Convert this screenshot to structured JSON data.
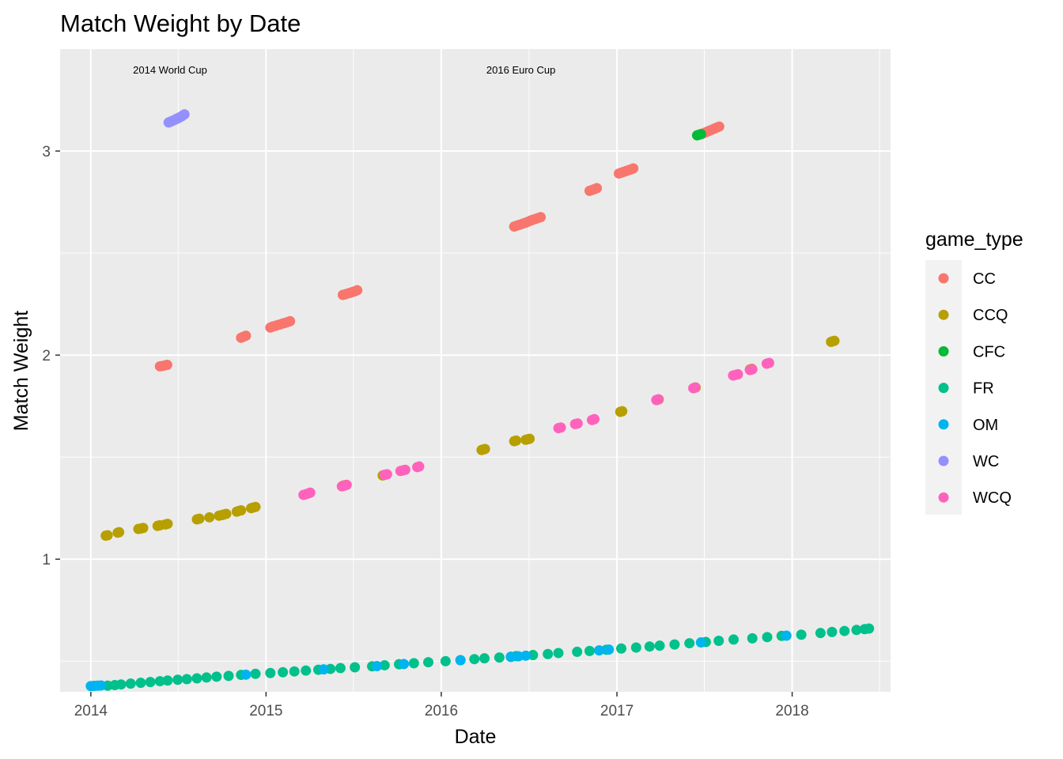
{
  "chart_data": {
    "type": "scatter",
    "title": "Match Weight by Date",
    "xlabel": "Date",
    "ylabel": "Match Weight",
    "x_ticks": [
      "2014",
      "2015",
      "2016",
      "2017",
      "2018"
    ],
    "y_ticks": [
      "1",
      "2",
      "3"
    ],
    "xlim": [
      "2013-10-29",
      "2018-07-25"
    ],
    "ylim": [
      0.35,
      3.5
    ],
    "grid": true,
    "legend_title": "game_type",
    "legend_position": "right",
    "annotations": [
      {
        "text": "2014 World Cup",
        "x": "2014-06-15",
        "y": 3.4
      },
      {
        "text": "2016 Euro Cup",
        "x": "2016-06-15",
        "y": 3.4
      }
    ],
    "series": [
      {
        "name": "CC",
        "color": "#F8766D",
        "points": [
          [
            "2014-05-25",
            1.945
          ],
          [
            "2014-05-30",
            1.947
          ],
          [
            "2014-06-04",
            1.949
          ],
          [
            "2014-06-09",
            1.952
          ],
          [
            "2014-11-10",
            2.085
          ],
          [
            "2014-11-15",
            2.09
          ],
          [
            "2014-11-20",
            2.095
          ],
          [
            "2015-01-10",
            2.135
          ],
          [
            "2015-01-15",
            2.14
          ],
          [
            "2015-01-20",
            2.143
          ],
          [
            "2015-01-25",
            2.147
          ],
          [
            "2015-01-30",
            2.15
          ],
          [
            "2015-02-05",
            2.155
          ],
          [
            "2015-02-10",
            2.158
          ],
          [
            "2015-02-15",
            2.162
          ],
          [
            "2015-02-20",
            2.166
          ],
          [
            "2015-06-10",
            2.295
          ],
          [
            "2015-06-15",
            2.298
          ],
          [
            "2015-06-20",
            2.302
          ],
          [
            "2015-06-25",
            2.305
          ],
          [
            "2015-06-30",
            2.309
          ],
          [
            "2015-07-05",
            2.313
          ],
          [
            "2015-07-10",
            2.318
          ],
          [
            "2016-06-01",
            2.63
          ],
          [
            "2016-06-06",
            2.634
          ],
          [
            "2016-06-11",
            2.638
          ],
          [
            "2016-06-16",
            2.642
          ],
          [
            "2016-06-21",
            2.646
          ],
          [
            "2016-06-26",
            2.65
          ],
          [
            "2016-07-01",
            2.655
          ],
          [
            "2016-07-06",
            2.66
          ],
          [
            "2016-07-11",
            2.664
          ],
          [
            "2016-07-16",
            2.668
          ],
          [
            "2016-07-21",
            2.672
          ],
          [
            "2016-07-26",
            2.676
          ],
          [
            "2016-11-05",
            2.805
          ],
          [
            "2016-11-10",
            2.809
          ],
          [
            "2016-11-15",
            2.813
          ],
          [
            "2016-11-20",
            2.818
          ],
          [
            "2017-01-05",
            2.89
          ],
          [
            "2017-01-10",
            2.894
          ],
          [
            "2017-01-15",
            2.898
          ],
          [
            "2017-01-20",
            2.902
          ],
          [
            "2017-01-25",
            2.906
          ],
          [
            "2017-01-30",
            2.91
          ],
          [
            "2017-02-04",
            2.915
          ],
          [
            "2017-06-28",
            3.085
          ],
          [
            "2017-07-03",
            3.09
          ],
          [
            "2017-07-08",
            3.095
          ],
          [
            "2017-07-13",
            3.1
          ],
          [
            "2017-07-18",
            3.105
          ],
          [
            "2017-07-23",
            3.11
          ],
          [
            "2017-07-28",
            3.115
          ],
          [
            "2017-08-02",
            3.12
          ]
        ]
      },
      {
        "name": "CCQ",
        "color": "#B79F00",
        "points": [
          [
            "2014-02-01",
            1.115
          ],
          [
            "2014-02-05",
            1.117
          ],
          [
            "2014-02-26",
            1.13
          ],
          [
            "2014-03-01",
            1.132
          ],
          [
            "2014-04-10",
            1.148
          ],
          [
            "2014-04-15",
            1.15
          ],
          [
            "2014-04-20",
            1.153
          ],
          [
            "2014-05-20",
            1.163
          ],
          [
            "2014-05-25",
            1.166
          ],
          [
            "2014-06-05",
            1.17
          ],
          [
            "2014-06-10",
            1.173
          ],
          [
            "2014-08-10",
            1.195
          ],
          [
            "2014-08-15",
            1.198
          ],
          [
            "2014-09-05",
            1.205
          ],
          [
            "2014-09-25",
            1.213
          ],
          [
            "2014-10-01",
            1.216
          ],
          [
            "2014-10-05",
            1.219
          ],
          [
            "2014-10-10",
            1.222
          ],
          [
            "2014-11-01",
            1.233
          ],
          [
            "2014-11-05",
            1.236
          ],
          [
            "2014-11-10",
            1.239
          ],
          [
            "2014-12-01",
            1.25
          ],
          [
            "2014-12-05",
            1.253
          ],
          [
            "2014-12-10",
            1.256
          ],
          [
            "2015-06-10",
            1.36
          ],
          [
            "2015-06-15",
            1.363
          ],
          [
            "2015-09-01",
            1.41
          ],
          [
            "2015-09-05",
            1.413
          ],
          [
            "2016-03-25",
            1.535
          ],
          [
            "2016-03-29",
            1.538
          ],
          [
            "2016-04-01",
            1.54
          ],
          [
            "2016-06-01",
            1.578
          ],
          [
            "2016-06-05",
            1.581
          ],
          [
            "2016-06-25",
            1.585
          ],
          [
            "2016-06-30",
            1.588
          ],
          [
            "2016-07-03",
            1.59
          ],
          [
            "2017-01-08",
            1.722
          ],
          [
            "2017-01-12",
            1.725
          ],
          [
            "2017-03-25",
            1.78
          ],
          [
            "2017-03-29",
            1.783
          ],
          [
            "2017-06-10",
            1.838
          ],
          [
            "2017-06-14",
            1.841
          ],
          [
            "2017-10-05",
            1.93
          ],
          [
            "2017-10-09",
            1.933
          ],
          [
            "2018-03-23",
            2.065
          ],
          [
            "2018-03-27",
            2.068
          ],
          [
            "2018-03-30",
            2.07
          ]
        ]
      },
      {
        "name": "CFC",
        "color": "#00BA38",
        "points": [
          [
            "2017-06-17",
            3.077
          ],
          [
            "2017-06-21",
            3.08
          ],
          [
            "2017-06-25",
            3.083
          ]
        ]
      },
      {
        "name": "FR",
        "color": "#00C08B",
        "points": [
          [
            "2014-02-05",
            0.38
          ],
          [
            "2014-02-20",
            0.383
          ],
          [
            "2014-03-05",
            0.386
          ],
          [
            "2014-03-25",
            0.39
          ],
          [
            "2014-04-15",
            0.394
          ],
          [
            "2014-05-05",
            0.398
          ],
          [
            "2014-05-25",
            0.402
          ],
          [
            "2014-06-10",
            0.405
          ],
          [
            "2014-07-01",
            0.409
          ],
          [
            "2014-07-20",
            0.412
          ],
          [
            "2014-08-10",
            0.416
          ],
          [
            "2014-08-30",
            0.42
          ],
          [
            "2014-09-20",
            0.424
          ],
          [
            "2014-10-15",
            0.428
          ],
          [
            "2014-11-10",
            0.433
          ],
          [
            "2014-12-10",
            0.438
          ],
          [
            "2015-01-10",
            0.442
          ],
          [
            "2015-02-05",
            0.446
          ],
          [
            "2015-03-01",
            0.45
          ],
          [
            "2015-03-25",
            0.454
          ],
          [
            "2015-04-20",
            0.458
          ],
          [
            "2015-05-15",
            0.462
          ],
          [
            "2015-06-05",
            0.466
          ],
          [
            "2015-07-05",
            0.47
          ],
          [
            "2015-08-10",
            0.475
          ],
          [
            "2015-09-05",
            0.48
          ],
          [
            "2015-10-05",
            0.485
          ],
          [
            "2015-11-05",
            0.49
          ],
          [
            "2015-12-05",
            0.495
          ],
          [
            "2016-01-10",
            0.5
          ],
          [
            "2016-02-10",
            0.505
          ],
          [
            "2016-03-10",
            0.51
          ],
          [
            "2016-03-31",
            0.514
          ],
          [
            "2016-05-01",
            0.518
          ],
          [
            "2016-05-25",
            0.522
          ],
          [
            "2016-06-05",
            0.525
          ],
          [
            "2016-07-10",
            0.53
          ],
          [
            "2016-08-10",
            0.535
          ],
          [
            "2016-09-01",
            0.54
          ],
          [
            "2016-10-10",
            0.546
          ],
          [
            "2016-11-05",
            0.55
          ],
          [
            "2016-12-10",
            0.556
          ],
          [
            "2017-01-10",
            0.562
          ],
          [
            "2017-02-10",
            0.567
          ],
          [
            "2017-03-10",
            0.572
          ],
          [
            "2017-03-31",
            0.576
          ],
          [
            "2017-05-01",
            0.582
          ],
          [
            "2017-06-01",
            0.588
          ],
          [
            "2017-07-05",
            0.594
          ],
          [
            "2017-08-01",
            0.6
          ],
          [
            "2017-09-01",
            0.606
          ],
          [
            "2017-10-10",
            0.612
          ],
          [
            "2017-11-10",
            0.618
          ],
          [
            "2017-12-10",
            0.624
          ],
          [
            "2018-01-20",
            0.63
          ],
          [
            "2018-03-01",
            0.638
          ],
          [
            "2018-03-25",
            0.643
          ],
          [
            "2018-04-20",
            0.648
          ],
          [
            "2018-05-15",
            0.653
          ],
          [
            "2018-06-01",
            0.657
          ],
          [
            "2018-06-10",
            0.66
          ]
        ]
      },
      {
        "name": "OM",
        "color": "#00B4F0",
        "points": [
          [
            "2014-01-01",
            0.378
          ],
          [
            "2014-01-08",
            0.379
          ],
          [
            "2014-01-15",
            0.38
          ],
          [
            "2014-01-22",
            0.381
          ],
          [
            "2014-11-20",
            0.434
          ],
          [
            "2015-05-01",
            0.46
          ],
          [
            "2015-08-20",
            0.476
          ],
          [
            "2015-10-15",
            0.486
          ],
          [
            "2016-02-10",
            0.505
          ],
          [
            "2016-05-25",
            0.521
          ],
          [
            "2016-06-10",
            0.524
          ],
          [
            "2016-06-25",
            0.527
          ],
          [
            "2016-11-25",
            0.553
          ],
          [
            "2016-12-15",
            0.557
          ],
          [
            "2017-06-25",
            0.592
          ],
          [
            "2017-12-20",
            0.625
          ]
        ]
      },
      {
        "name": "WC",
        "color": "#9590FF",
        "points": [
          [
            "2014-06-12",
            3.14
          ],
          [
            "2014-06-15",
            3.143
          ],
          [
            "2014-06-18",
            3.146
          ],
          [
            "2014-06-21",
            3.149
          ],
          [
            "2014-06-24",
            3.152
          ],
          [
            "2014-06-27",
            3.156
          ],
          [
            "2014-06-30",
            3.159
          ],
          [
            "2014-07-03",
            3.163
          ],
          [
            "2014-07-06",
            3.166
          ],
          [
            "2014-07-09",
            3.17
          ],
          [
            "2014-07-12",
            3.175
          ],
          [
            "2014-07-15",
            3.18
          ]
        ]
      },
      {
        "name": "WCQ",
        "color": "#FF62BC",
        "points": [
          [
            "2015-03-20",
            1.315
          ],
          [
            "2015-03-25",
            1.318
          ],
          [
            "2015-03-30",
            1.322
          ],
          [
            "2015-04-03",
            1.326
          ],
          [
            "2015-06-08",
            1.357
          ],
          [
            "2015-06-13",
            1.36
          ],
          [
            "2015-06-18",
            1.364
          ],
          [
            "2015-09-05",
            1.413
          ],
          [
            "2015-09-10",
            1.416
          ],
          [
            "2015-10-08",
            1.432
          ],
          [
            "2015-10-13",
            1.435
          ],
          [
            "2015-10-18",
            1.438
          ],
          [
            "2015-11-12",
            1.451
          ],
          [
            "2015-11-16",
            1.454
          ],
          [
            "2016-09-01",
            1.642
          ],
          [
            "2016-09-06",
            1.645
          ],
          [
            "2016-10-06",
            1.662
          ],
          [
            "2016-10-11",
            1.665
          ],
          [
            "2016-11-10",
            1.682
          ],
          [
            "2016-11-15",
            1.686
          ],
          [
            "2017-03-24",
            1.78
          ],
          [
            "2017-03-28",
            1.783
          ],
          [
            "2017-06-09",
            1.838
          ],
          [
            "2017-06-13",
            1.841
          ],
          [
            "2017-08-31",
            1.9
          ],
          [
            "2017-09-05",
            1.903
          ],
          [
            "2017-09-10",
            1.906
          ],
          [
            "2017-10-05",
            1.927
          ],
          [
            "2017-10-10",
            1.93
          ],
          [
            "2017-11-09",
            1.958
          ],
          [
            "2017-11-14",
            1.962
          ]
        ]
      }
    ]
  }
}
